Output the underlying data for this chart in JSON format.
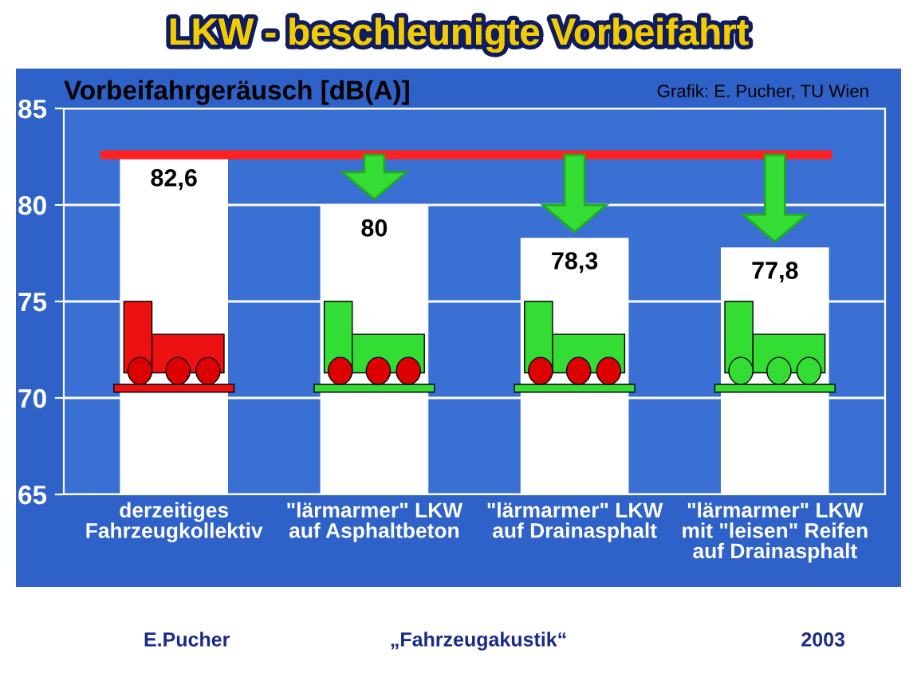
{
  "chart_data": {
    "type": "bar",
    "title": "LKW - beschleunigte Vorbeifahrt",
    "ylabel": "Vorbeifahrgeräusch [dB(A)]",
    "categories": [
      "derzeitiges\nFahrzeugkollektiv",
      "\"lärmarmer\" LKW\nauf Asphaltbeton",
      "\"lärmarmer\" LKW\nauf Drainasphalt",
      "\"lärmarmer\" LKW\nmit \"leisen\" Reifen\nauf Drainasphalt"
    ],
    "values": [
      82.6,
      80,
      78.3,
      77.8
    ],
    "value_labels": [
      "82,6",
      "80",
      "78,3",
      "77,8"
    ],
    "color": "#ffffff",
    "ylim": [
      65,
      85
    ],
    "yticks": [
      65,
      70,
      75,
      80,
      85
    ],
    "grid": "y",
    "ref_lines": [
      {
        "axis": "y",
        "value": 82.6,
        "color": "#ff2020"
      }
    ],
    "annotations": [
      "Grafik: E. Pucher, TU Wien",
      "E.Pucher",
      "„Fahrzeugakustik“",
      "2003"
    ]
  }
}
